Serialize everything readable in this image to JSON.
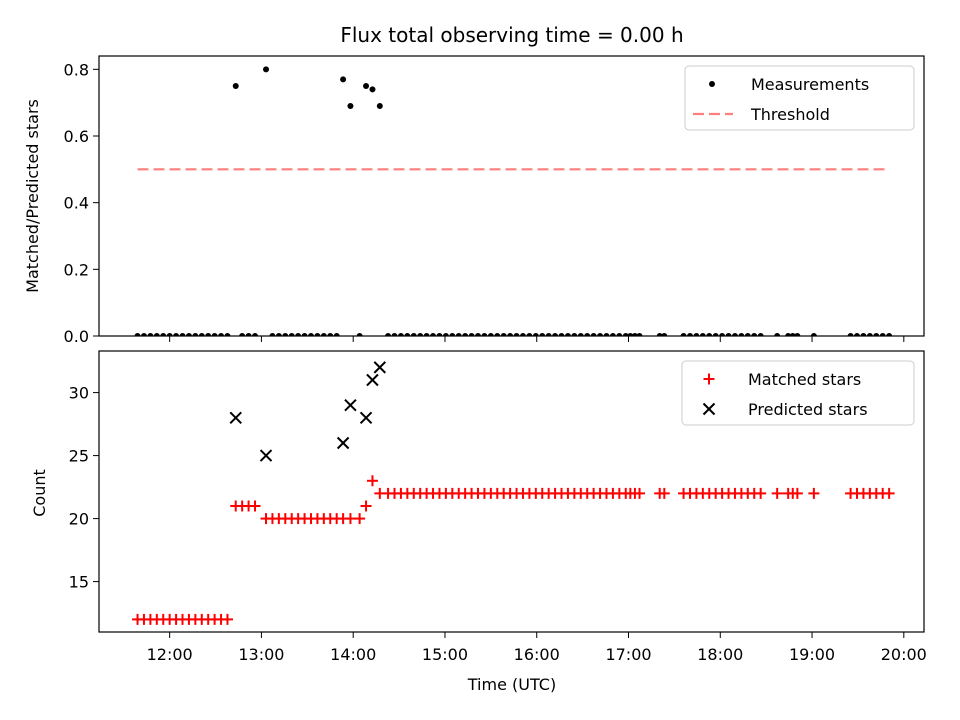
{
  "title": "Flux total observing time = 0.00 h",
  "chart_data": [
    {
      "type": "scatter",
      "ylabel": "Matched/Predicted stars",
      "xlim": [
        11.23,
        20.22
      ],
      "ylim": [
        0.0,
        0.84
      ],
      "yticks": [
        0.0,
        0.2,
        0.4,
        0.6,
        0.8
      ],
      "ytick_labels": [
        "0.0",
        "0.2",
        "0.4",
        "0.6",
        "0.8"
      ],
      "legend": {
        "position": "top-right",
        "entries": [
          "Measurements",
          "Threshold"
        ]
      },
      "grid": false,
      "series": [
        {
          "name": "Measurements",
          "marker": "dot",
          "color": "#000000",
          "points": [
            [
              12.72,
              0.75
            ],
            [
              13.05,
              0.8
            ],
            [
              13.89,
              0.77
            ],
            [
              13.97,
              0.69
            ],
            [
              14.14,
              0.75
            ],
            [
              14.21,
              0.74
            ],
            [
              14.29,
              0.69
            ],
            [
              11.65,
              0.0
            ],
            [
              11.72,
              0.0
            ],
            [
              11.79,
              0.0
            ],
            [
              11.86,
              0.0
            ],
            [
              11.93,
              0.0
            ],
            [
              12.0,
              0.0
            ],
            [
              12.07,
              0.0
            ],
            [
              12.14,
              0.0
            ],
            [
              12.21,
              0.0
            ],
            [
              12.28,
              0.0
            ],
            [
              12.35,
              0.0
            ],
            [
              12.42,
              0.0
            ],
            [
              12.49,
              0.0
            ],
            [
              12.56,
              0.0
            ],
            [
              12.63,
              0.0
            ],
            [
              12.79,
              0.0
            ],
            [
              12.86,
              0.0
            ],
            [
              12.93,
              0.0
            ],
            [
              13.12,
              0.0
            ],
            [
              13.19,
              0.0
            ],
            [
              13.26,
              0.0
            ],
            [
              13.33,
              0.0
            ],
            [
              13.4,
              0.0
            ],
            [
              13.47,
              0.0
            ],
            [
              13.54,
              0.0
            ],
            [
              13.61,
              0.0
            ],
            [
              13.68,
              0.0
            ],
            [
              13.75,
              0.0
            ],
            [
              13.82,
              0.0
            ],
            [
              14.07,
              0.0
            ],
            [
              14.38,
              0.0
            ],
            [
              14.45,
              0.0
            ],
            [
              14.52,
              0.0
            ],
            [
              14.59,
              0.0
            ],
            [
              14.66,
              0.0
            ],
            [
              14.73,
              0.0
            ],
            [
              14.8,
              0.0
            ],
            [
              14.87,
              0.0
            ],
            [
              14.94,
              0.0
            ],
            [
              15.01,
              0.0
            ],
            [
              15.08,
              0.0
            ],
            [
              15.15,
              0.0
            ],
            [
              15.22,
              0.0
            ],
            [
              15.29,
              0.0
            ],
            [
              15.36,
              0.0
            ],
            [
              15.43,
              0.0
            ],
            [
              15.5,
              0.0
            ],
            [
              15.57,
              0.0
            ],
            [
              15.64,
              0.0
            ],
            [
              15.71,
              0.0
            ],
            [
              15.78,
              0.0
            ],
            [
              15.85,
              0.0
            ],
            [
              15.92,
              0.0
            ],
            [
              15.99,
              0.0
            ],
            [
              16.06,
              0.0
            ],
            [
              16.13,
              0.0
            ],
            [
              16.2,
              0.0
            ],
            [
              16.27,
              0.0
            ],
            [
              16.34,
              0.0
            ],
            [
              16.41,
              0.0
            ],
            [
              16.48,
              0.0
            ],
            [
              16.55,
              0.0
            ],
            [
              16.62,
              0.0
            ],
            [
              16.69,
              0.0
            ],
            [
              16.76,
              0.0
            ],
            [
              16.83,
              0.0
            ],
            [
              16.9,
              0.0
            ],
            [
              16.97,
              0.0
            ],
            [
              17.02,
              0.0
            ],
            [
              17.07,
              0.0
            ],
            [
              17.12,
              0.0
            ],
            [
              17.34,
              0.0
            ],
            [
              17.39,
              0.0
            ],
            [
              17.6,
              0.0
            ],
            [
              17.67,
              0.0
            ],
            [
              17.74,
              0.0
            ],
            [
              17.81,
              0.0
            ],
            [
              17.88,
              0.0
            ],
            [
              17.95,
              0.0
            ],
            [
              18.02,
              0.0
            ],
            [
              18.09,
              0.0
            ],
            [
              18.16,
              0.0
            ],
            [
              18.23,
              0.0
            ],
            [
              18.3,
              0.0
            ],
            [
              18.37,
              0.0
            ],
            [
              18.44,
              0.0
            ],
            [
              18.62,
              0.0
            ],
            [
              18.74,
              0.0
            ],
            [
              18.79,
              0.0
            ],
            [
              18.84,
              0.0
            ],
            [
              19.02,
              0.0
            ],
            [
              19.42,
              0.0
            ],
            [
              19.49,
              0.0
            ],
            [
              19.56,
              0.0
            ],
            [
              19.63,
              0.0
            ],
            [
              19.7,
              0.0
            ],
            [
              19.77,
              0.0
            ],
            [
              19.84,
              0.0
            ]
          ]
        },
        {
          "name": "Threshold",
          "marker": "dashed-line",
          "color": "#ff7f7f",
          "points": [
            [
              11.65,
              0.5
            ],
            [
              19.84,
              0.5
            ]
          ]
        }
      ]
    },
    {
      "type": "scatter",
      "xlabel": "Time (UTC)",
      "ylabel": "Count",
      "xlim": [
        11.23,
        20.22
      ],
      "ylim": [
        11.0,
        33.3
      ],
      "xticks": [
        12,
        13,
        14,
        15,
        16,
        17,
        18,
        19,
        20
      ],
      "xtick_labels": [
        "12:00",
        "13:00",
        "14:00",
        "15:00",
        "16:00",
        "17:00",
        "18:00",
        "19:00",
        "20:00"
      ],
      "yticks": [
        15,
        20,
        25,
        30
      ],
      "ytick_labels": [
        "15",
        "20",
        "25",
        "30"
      ],
      "legend": {
        "position": "top-right",
        "entries": [
          "Matched stars",
          "Predicted stars"
        ]
      },
      "grid": false,
      "series": [
        {
          "name": "Matched stars",
          "marker": "plus",
          "color": "#ff0000",
          "points": [
            [
              11.65,
              12
            ],
            [
              11.72,
              12
            ],
            [
              11.79,
              12
            ],
            [
              11.86,
              12
            ],
            [
              11.93,
              12
            ],
            [
              12.0,
              12
            ],
            [
              12.07,
              12
            ],
            [
              12.14,
              12
            ],
            [
              12.21,
              12
            ],
            [
              12.28,
              12
            ],
            [
              12.35,
              12
            ],
            [
              12.42,
              12
            ],
            [
              12.49,
              12
            ],
            [
              12.56,
              12
            ],
            [
              12.63,
              12
            ],
            [
              12.72,
              21
            ],
            [
              12.79,
              21
            ],
            [
              12.86,
              21
            ],
            [
              12.93,
              21
            ],
            [
              13.05,
              20
            ],
            [
              13.12,
              20
            ],
            [
              13.19,
              20
            ],
            [
              13.26,
              20
            ],
            [
              13.33,
              20
            ],
            [
              13.4,
              20
            ],
            [
              13.47,
              20
            ],
            [
              13.54,
              20
            ],
            [
              13.61,
              20
            ],
            [
              13.68,
              20
            ],
            [
              13.75,
              20
            ],
            [
              13.82,
              20
            ],
            [
              13.89,
              20
            ],
            [
              13.97,
              20
            ],
            [
              14.07,
              20
            ],
            [
              14.14,
              21
            ],
            [
              14.21,
              23
            ],
            [
              14.29,
              22
            ],
            [
              14.38,
              22
            ],
            [
              14.45,
              22
            ],
            [
              14.52,
              22
            ],
            [
              14.59,
              22
            ],
            [
              14.66,
              22
            ],
            [
              14.73,
              22
            ],
            [
              14.8,
              22
            ],
            [
              14.87,
              22
            ],
            [
              14.94,
              22
            ],
            [
              15.01,
              22
            ],
            [
              15.08,
              22
            ],
            [
              15.15,
              22
            ],
            [
              15.22,
              22
            ],
            [
              15.29,
              22
            ],
            [
              15.36,
              22
            ],
            [
              15.43,
              22
            ],
            [
              15.5,
              22
            ],
            [
              15.57,
              22
            ],
            [
              15.64,
              22
            ],
            [
              15.71,
              22
            ],
            [
              15.78,
              22
            ],
            [
              15.85,
              22
            ],
            [
              15.92,
              22
            ],
            [
              15.99,
              22
            ],
            [
              16.06,
              22
            ],
            [
              16.13,
              22
            ],
            [
              16.2,
              22
            ],
            [
              16.27,
              22
            ],
            [
              16.34,
              22
            ],
            [
              16.41,
              22
            ],
            [
              16.48,
              22
            ],
            [
              16.55,
              22
            ],
            [
              16.62,
              22
            ],
            [
              16.69,
              22
            ],
            [
              16.76,
              22
            ],
            [
              16.83,
              22
            ],
            [
              16.9,
              22
            ],
            [
              16.97,
              22
            ],
            [
              17.02,
              22
            ],
            [
              17.07,
              22
            ],
            [
              17.12,
              22
            ],
            [
              17.34,
              22
            ],
            [
              17.39,
              22
            ],
            [
              17.6,
              22
            ],
            [
              17.67,
              22
            ],
            [
              17.74,
              22
            ],
            [
              17.81,
              22
            ],
            [
              17.88,
              22
            ],
            [
              17.95,
              22
            ],
            [
              18.02,
              22
            ],
            [
              18.09,
              22
            ],
            [
              18.16,
              22
            ],
            [
              18.23,
              22
            ],
            [
              18.3,
              22
            ],
            [
              18.37,
              22
            ],
            [
              18.44,
              22
            ],
            [
              18.62,
              22
            ],
            [
              18.74,
              22
            ],
            [
              18.79,
              22
            ],
            [
              18.84,
              22
            ],
            [
              19.02,
              22
            ],
            [
              19.42,
              22
            ],
            [
              19.49,
              22
            ],
            [
              19.56,
              22
            ],
            [
              19.63,
              22
            ],
            [
              19.7,
              22
            ],
            [
              19.77,
              22
            ],
            [
              19.84,
              22
            ]
          ]
        },
        {
          "name": "Predicted stars",
          "marker": "x",
          "color": "#000000",
          "points": [
            [
              12.72,
              28
            ],
            [
              13.05,
              25
            ],
            [
              13.89,
              26
            ],
            [
              13.97,
              29
            ],
            [
              14.14,
              28
            ],
            [
              14.21,
              31
            ],
            [
              14.29,
              32
            ]
          ]
        }
      ]
    }
  ]
}
